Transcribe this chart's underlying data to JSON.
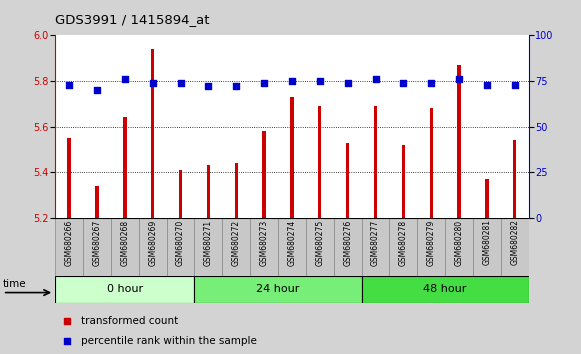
{
  "title": "GDS3991 / 1415894_at",
  "categories": [
    "GSM680266",
    "GSM680267",
    "GSM680268",
    "GSM680269",
    "GSM680270",
    "GSM680271",
    "GSM680272",
    "GSM680273",
    "GSM680274",
    "GSM680275",
    "GSM680276",
    "GSM680277",
    "GSM680278",
    "GSM680279",
    "GSM680280",
    "GSM680281",
    "GSM680282"
  ],
  "bar_values": [
    5.55,
    5.34,
    5.64,
    5.94,
    5.41,
    5.43,
    5.44,
    5.58,
    5.73,
    5.69,
    5.53,
    5.69,
    5.52,
    5.68,
    5.87,
    5.37,
    5.54
  ],
  "dot_values": [
    73,
    70,
    76,
    74,
    74,
    72,
    72,
    74,
    75,
    75,
    74,
    76,
    74,
    74,
    76,
    73,
    73
  ],
  "bar_color": "#cc0000",
  "dot_color": "#0000cc",
  "ylim_left": [
    5.2,
    6.0
  ],
  "ylim_right": [
    0,
    100
  ],
  "yticks_left": [
    5.2,
    5.4,
    5.6,
    5.8,
    6.0
  ],
  "yticks_right": [
    0,
    25,
    50,
    75,
    100
  ],
  "groups": [
    {
      "label": "0 hour",
      "start": 0,
      "end": 5,
      "color": "#ccffcc"
    },
    {
      "label": "24 hour",
      "start": 5,
      "end": 11,
      "color": "#77ee77"
    },
    {
      "label": "48 hour",
      "start": 11,
      "end": 17,
      "color": "#44dd44"
    }
  ],
  "background_color": "#d3d3d3",
  "plot_bg_color": "#ffffff",
  "dotted_lines": [
    5.4,
    5.6,
    5.8
  ],
  "legend_items": [
    {
      "label": "transformed count",
      "color": "#cc0000",
      "marker": "s"
    },
    {
      "label": "percentile rank within the sample",
      "color": "#0000cc",
      "marker": "s"
    }
  ]
}
